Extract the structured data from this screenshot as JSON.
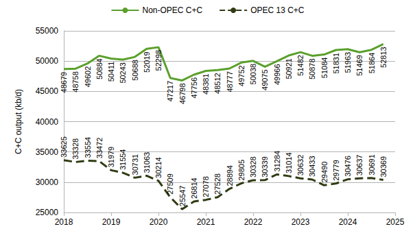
{
  "chart_data": {
    "type": "line",
    "y_label": "C+C output (kb/d)",
    "x": [
      2018,
      2018.25,
      2018.5,
      2018.75,
      2019,
      2019.25,
      2019.5,
      2019.75,
      2020,
      2020.25,
      2020.5,
      2020.75,
      2021,
      2021.25,
      2021.5,
      2021.75,
      2022,
      2022.25,
      2022.5,
      2022.75,
      2023,
      2023.25,
      2023.5,
      2023.75,
      2024,
      2024.25,
      2024.5,
      2024.75
    ],
    "series": [
      {
        "name": "Non-OPEC C+C",
        "color": "#5aa02c",
        "line_style": "solid",
        "values": [
          48679,
          48758,
          49602,
          50884,
          50411,
          50243,
          50688,
          52019,
          52298,
          47217,
          46798,
          47756,
          48381,
          48512,
          48777,
          49752,
          50038,
          49075,
          49966,
          50921,
          51482,
          50878,
          51084,
          51831,
          51963,
          51469,
          51864,
          52813
        ]
      },
      {
        "name": "OPEC 13 C+C",
        "color": "#2f3b12",
        "line_style": "dashed",
        "values": [
          33625,
          33328,
          33554,
          33472,
          31979,
          31554,
          30731,
          31063,
          30214,
          27509,
          25547,
          26814,
          27078,
          27528,
          28894,
          29805,
          30328,
          30339,
          31284,
          31014,
          30632,
          30433,
          29490,
          29779,
          30476,
          30637,
          30691,
          30369
        ]
      }
    ],
    "xlim": [
      2018,
      2025
    ],
    "xticks": [
      2018,
      2019,
      2020,
      2021,
      2022,
      2023,
      2024,
      2025
    ],
    "ylim": [
      25000,
      55000
    ],
    "yticks": [
      25000,
      30000,
      35000,
      40000,
      45000,
      50000,
      55000
    ],
    "grid": true,
    "legend": "top",
    "data_labels": true
  }
}
